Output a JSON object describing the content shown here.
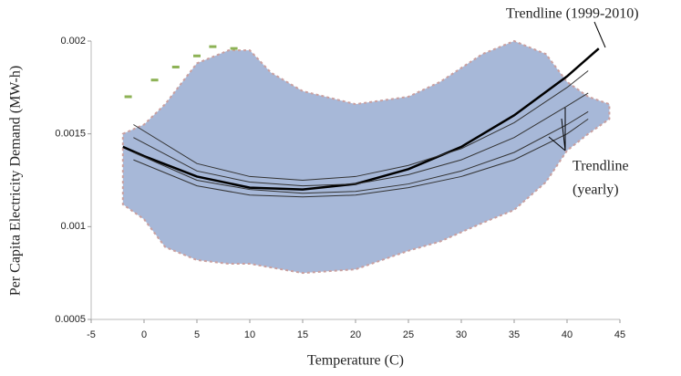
{
  "chart_data": {
    "type": "scatter",
    "xlabel": "Temperature (C)",
    "ylabel": "Per Capita Electricity Demand (MW-h)",
    "xlim": [
      -5,
      45
    ],
    "xticks": [
      -5,
      0,
      5,
      10,
      15,
      20,
      25,
      30,
      35,
      40,
      45
    ],
    "ylim": [
      0.0005,
      0.002
    ],
    "yticks": [
      0.0005,
      0.001,
      0.0015,
      0.002
    ],
    "grid": false,
    "cloud": {
      "color": "#a7b8d8",
      "x": [
        -2,
        0,
        2,
        5,
        8,
        10,
        12,
        15,
        20,
        25,
        28,
        32,
        35,
        38,
        40,
        42,
        44
      ],
      "upper": [
        0.0015,
        0.00155,
        0.00166,
        0.00188,
        0.00195,
        0.00195,
        0.00183,
        0.00173,
        0.00166,
        0.0017,
        0.00178,
        0.00193,
        0.002,
        0.00193,
        0.00178,
        0.0017,
        0.00166
      ],
      "lower": [
        0.00112,
        0.00104,
        0.00089,
        0.00082,
        0.0008,
        0.0008,
        0.00078,
        0.00075,
        0.00077,
        0.00087,
        0.00092,
        0.00102,
        0.00109,
        0.00124,
        0.00141,
        0.0015,
        0.00158
      ]
    },
    "outliers": {
      "color": "#8db255",
      "x": [
        -1.5,
        1,
        3,
        5,
        6.5,
        8.5
      ],
      "y": [
        0.0017,
        0.00179,
        0.00186,
        0.00192,
        0.00197,
        0.00196
      ]
    },
    "trendlines": [
      {
        "color": "#000000",
        "width": 2.5,
        "x": [
          -2,
          0,
          5,
          10,
          15,
          20,
          25,
          30,
          35,
          40,
          43
        ],
        "y": [
          0.00143,
          0.00138,
          0.00127,
          0.00121,
          0.0012,
          0.00123,
          0.00131,
          0.00143,
          0.0016,
          0.00181,
          0.00196
        ]
      },
      {
        "color": "#333333",
        "width": 1,
        "x": [
          -1,
          5,
          10,
          15,
          20,
          25,
          30,
          35,
          40,
          42
        ],
        "y": [
          0.00155,
          0.00134,
          0.00127,
          0.00125,
          0.00127,
          0.00133,
          0.00142,
          0.00156,
          0.00175,
          0.00184
        ]
      },
      {
        "color": "#333333",
        "width": 1,
        "x": [
          -1,
          5,
          10,
          15,
          20,
          25,
          30,
          35,
          40,
          42
        ],
        "y": [
          0.00148,
          0.0013,
          0.00124,
          0.00122,
          0.00123,
          0.00128,
          0.00136,
          0.00148,
          0.00165,
          0.00172
        ]
      },
      {
        "color": "#333333",
        "width": 1,
        "x": [
          -1,
          5,
          10,
          15,
          20,
          25,
          30,
          35,
          40,
          42
        ],
        "y": [
          0.0014,
          0.00125,
          0.0012,
          0.00118,
          0.00119,
          0.00123,
          0.0013,
          0.0014,
          0.00155,
          0.00162
        ]
      },
      {
        "color": "#333333",
        "width": 1,
        "x": [
          -1,
          5,
          10,
          15,
          20,
          25,
          30,
          35,
          40,
          42
        ],
        "y": [
          0.00136,
          0.00122,
          0.00117,
          0.00116,
          0.00117,
          0.00121,
          0.00127,
          0.00136,
          0.0015,
          0.00158
        ]
      }
    ],
    "annotations": [
      {
        "text": [
          "Trendline (1999-2010)"
        ]
      },
      {
        "text": [
          "Trendline",
          "(yearly)"
        ]
      }
    ]
  }
}
